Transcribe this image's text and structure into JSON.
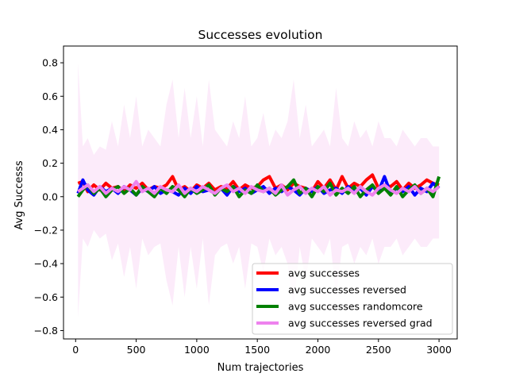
{
  "chart_data": {
    "type": "line",
    "title": "Successes evolution",
    "xlabel": "Num trajectories",
    "ylabel": "Avg Successs",
    "xlim": [
      -100,
      3150
    ],
    "ylim": [
      -0.85,
      0.9
    ],
    "xticks": [
      0,
      500,
      1000,
      1500,
      2000,
      2500,
      3000
    ],
    "yticks": [
      -0.8,
      -0.6,
      -0.4,
      -0.2,
      0.0,
      0.2,
      0.4,
      0.6,
      0.8
    ],
    "ytick_labels": [
      "−0.8",
      "−0.6",
      "−0.4",
      "−0.2",
      "0.0",
      "0.2",
      "0.4",
      "0.6",
      "0.8"
    ],
    "grid": false,
    "legend_position": "lower-right",
    "band": {
      "series": "avg successes reversed grad",
      "color": "#f5c6f0",
      "x": [
        20,
        60,
        100,
        150,
        200,
        250,
        300,
        350,
        400,
        450,
        500,
        550,
        600,
        650,
        700,
        750,
        800,
        850,
        900,
        950,
        1000,
        1050,
        1100,
        1150,
        1200,
        1250,
        1300,
        1350,
        1400,
        1450,
        1500,
        1550,
        1600,
        1650,
        1700,
        1750,
        1800,
        1850,
        1900,
        1950,
        2000,
        2050,
        2100,
        2150,
        2200,
        2250,
        2300,
        2350,
        2400,
        2450,
        2500,
        2550,
        2600,
        2650,
        2700,
        2750,
        2800,
        2850,
        2900,
        2950,
        3000
      ],
      "upper": [
        0.8,
        0.3,
        0.35,
        0.25,
        0.3,
        0.28,
        0.45,
        0.3,
        0.55,
        0.35,
        0.6,
        0.3,
        0.4,
        0.35,
        0.3,
        0.55,
        0.7,
        0.35,
        0.65,
        0.35,
        0.6,
        0.3,
        0.7,
        0.4,
        0.35,
        0.3,
        0.45,
        0.35,
        0.6,
        0.3,
        0.35,
        0.5,
        0.3,
        0.4,
        0.35,
        0.45,
        0.7,
        0.35,
        0.55,
        0.3,
        0.35,
        0.4,
        0.3,
        0.65,
        0.35,
        0.3,
        0.45,
        0.35,
        0.4,
        0.3,
        0.45,
        0.35,
        0.35,
        0.3,
        0.4,
        0.35,
        0.3,
        0.35,
        0.35,
        0.3,
        0.3
      ],
      "lower": [
        -0.72,
        -0.25,
        -0.3,
        -0.2,
        -0.25,
        -0.22,
        -0.38,
        -0.28,
        -0.48,
        -0.3,
        -0.55,
        -0.25,
        -0.35,
        -0.3,
        -0.28,
        -0.5,
        -0.65,
        -0.3,
        -0.6,
        -0.3,
        -0.55,
        -0.25,
        -0.65,
        -0.35,
        -0.3,
        -0.28,
        -0.4,
        -0.3,
        -0.55,
        -0.28,
        -0.3,
        -0.45,
        -0.25,
        -0.35,
        -0.3,
        -0.4,
        -0.66,
        -0.3,
        -0.5,
        -0.25,
        -0.3,
        -0.35,
        -0.25,
        -0.6,
        -0.3,
        -0.28,
        -0.4,
        -0.3,
        -0.35,
        -0.25,
        -0.4,
        -0.3,
        -0.3,
        -0.25,
        -0.35,
        -0.3,
        -0.25,
        -0.3,
        -0.3,
        -0.25,
        -0.25
      ]
    },
    "x": [
      20,
      60,
      100,
      150,
      200,
      250,
      300,
      350,
      400,
      450,
      500,
      550,
      600,
      650,
      700,
      750,
      800,
      850,
      900,
      950,
      1000,
      1050,
      1100,
      1150,
      1200,
      1250,
      1300,
      1350,
      1400,
      1450,
      1500,
      1550,
      1600,
      1650,
      1700,
      1750,
      1800,
      1850,
      1900,
      1950,
      2000,
      2050,
      2100,
      2150,
      2200,
      2250,
      2300,
      2350,
      2400,
      2450,
      2500,
      2550,
      2600,
      2650,
      2700,
      2750,
      2800,
      2850,
      2900,
      2950,
      3000
    ],
    "series": [
      {
        "name": "avg successes",
        "color": "#ff0000",
        "values": [
          0.08,
          0.09,
          0.03,
          0.07,
          0.04,
          0.08,
          0.05,
          0.06,
          0.03,
          0.07,
          0.05,
          0.08,
          0.04,
          0.06,
          0.05,
          0.07,
          0.12,
          0.04,
          0.06,
          0.03,
          0.07,
          0.05,
          0.08,
          0.04,
          0.06,
          0.05,
          0.09,
          0.04,
          0.07,
          0.05,
          0.06,
          0.1,
          0.12,
          0.05,
          0.07,
          0.04,
          0.08,
          0.06,
          0.05,
          0.03,
          0.09,
          0.05,
          0.1,
          0.04,
          0.12,
          0.05,
          0.08,
          0.06,
          0.1,
          0.13,
          0.05,
          0.07,
          0.06,
          0.09,
          0.04,
          0.08,
          0.05,
          0.07,
          0.1,
          0.08,
          0.07
        ]
      },
      {
        "name": "avg successes reversed",
        "color": "#0000ff",
        "values": [
          0.02,
          0.1,
          0.04,
          0.01,
          0.06,
          0.03,
          0.05,
          0.02,
          0.06,
          0.04,
          0.01,
          0.05,
          0.03,
          0.06,
          0.02,
          0.04,
          0.03,
          0.01,
          0.05,
          0.02,
          0.06,
          0.03,
          0.04,
          0.02,
          0.05,
          0.01,
          0.06,
          0.03,
          0.05,
          0.02,
          0.04,
          0.06,
          0.02,
          0.05,
          0.03,
          0.06,
          0.04,
          0.01,
          0.05,
          0.03,
          0.06,
          0.02,
          0.04,
          0.05,
          0.02,
          0.06,
          0.03,
          0.05,
          0.01,
          0.06,
          0.03,
          0.12,
          0.02,
          0.05,
          0.03,
          0.06,
          0.01,
          0.05,
          0.03,
          0.08,
          0.05
        ]
      },
      {
        "name": "avg successes randomcore",
        "color": "#008000",
        "values": [
          0.0,
          0.04,
          0.07,
          0.02,
          0.05,
          0.0,
          0.04,
          0.06,
          0.02,
          0.05,
          0.01,
          0.06,
          0.03,
          0.0,
          0.05,
          0.02,
          0.06,
          0.04,
          0.0,
          0.05,
          0.02,
          0.04,
          0.07,
          0.01,
          0.05,
          0.03,
          0.06,
          0.0,
          0.04,
          0.02,
          0.07,
          0.03,
          0.05,
          0.01,
          0.04,
          0.06,
          0.1,
          0.02,
          0.05,
          0.0,
          0.06,
          0.03,
          0.08,
          0.01,
          0.05,
          0.02,
          0.06,
          0.0,
          0.04,
          0.07,
          0.02,
          0.05,
          0.01,
          0.06,
          0.0,
          0.04,
          0.07,
          0.02,
          0.05,
          0.0,
          0.12
        ]
      },
      {
        "name": "avg successes reversed grad",
        "color": "#ee82ee",
        "values": [
          0.03,
          0.05,
          0.07,
          0.03,
          0.06,
          0.02,
          0.05,
          0.03,
          0.06,
          0.04,
          0.09,
          0.03,
          0.05,
          0.02,
          0.06,
          0.04,
          0.03,
          0.07,
          0.02,
          0.05,
          0.03,
          0.06,
          0.04,
          0.02,
          0.05,
          0.07,
          0.03,
          0.05,
          0.02,
          0.06,
          0.04,
          0.03,
          0.05,
          0.02,
          0.07,
          0.01,
          0.04,
          0.06,
          0.02,
          0.05,
          0.03,
          0.06,
          0.01,
          0.04,
          0.03,
          0.05,
          0.02,
          0.06,
          0.03,
          0.01,
          0.05,
          0.07,
          0.04,
          0.02,
          0.05,
          0.03,
          0.06,
          0.02,
          0.05,
          0.03,
          0.06
        ]
      }
    ]
  }
}
